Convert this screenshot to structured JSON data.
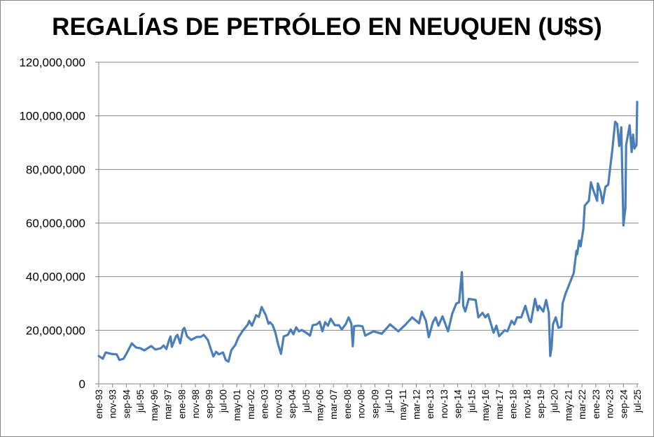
{
  "chart_data": {
    "type": "line",
    "title": "REGALÍAS DE PETRÓLEO EN NEUQUEN (U$S)",
    "xlabel": "",
    "ylabel": "",
    "y_unit_note": "values in millions of US$",
    "ylim": [
      0,
      120000000
    ],
    "yticks": [
      0,
      20000000,
      40000000,
      60000000,
      80000000,
      100000000,
      120000000
    ],
    "ytick_labels": [
      "0",
      "20,000,000",
      "40,000,000",
      "60,000,000",
      "80,000,000",
      "100,000,000",
      "120,000,000"
    ],
    "grid": true,
    "legend": "none",
    "x_start": "ene-93",
    "x_step_months": 10,
    "xtick_labels": [
      "ene-93",
      "nov-93",
      "sep-94",
      "jul-95",
      "may-96",
      "mar-97",
      "ene-98",
      "nov-98",
      "sep-99",
      "jul-00",
      "may-01",
      "mar-02",
      "ene-03",
      "nov-03",
      "sep-04",
      "jul-05",
      "may-06",
      "mar-07",
      "ene-08",
      "nov-08",
      "sep-09",
      "jul-10",
      "may-11",
      "mar-12",
      "ene-13",
      "nov-13",
      "sep-14",
      "jul-15",
      "may-16",
      "mar-17",
      "ene-18",
      "nov-18",
      "sep-19",
      "jul-20",
      "may-21",
      "mar-22",
      "ene-23",
      "nov-23",
      "sep-24",
      "jul-25"
    ],
    "series": [
      {
        "name": "Regalías",
        "color": "#4a7ebb",
        "points_month_index_and_millions": [
          [
            0,
            10.4
          ],
          [
            3,
            9.4
          ],
          [
            5,
            11.7
          ],
          [
            9,
            11.2
          ],
          [
            13,
            11
          ],
          [
            15,
            8.9
          ],
          [
            18,
            9.4
          ],
          [
            20,
            11.2
          ],
          [
            24,
            15.1
          ],
          [
            27,
            13.6
          ],
          [
            30,
            13.3
          ],
          [
            33,
            12.5
          ],
          [
            38,
            14.1
          ],
          [
            41,
            12.8
          ],
          [
            45,
            13.3
          ],
          [
            47,
            14.3
          ],
          [
            49,
            13
          ],
          [
            51,
            16.4
          ],
          [
            52,
            17.7
          ],
          [
            53,
            13.8
          ],
          [
            56,
            17.7
          ],
          [
            57,
            18.3
          ],
          [
            59,
            15.1
          ],
          [
            61,
            20.3
          ],
          [
            62,
            20.9
          ],
          [
            64,
            17.7
          ],
          [
            67,
            16.4
          ],
          [
            71,
            17.5
          ],
          [
            74,
            17.5
          ],
          [
            76,
            18.3
          ],
          [
            79,
            16.4
          ],
          [
            81,
            13.3
          ],
          [
            83,
            10.2
          ],
          [
            85,
            12
          ],
          [
            87,
            11
          ],
          [
            90,
            11.7
          ],
          [
            92,
            8.9
          ],
          [
            94,
            8.3
          ],
          [
            96,
            12.5
          ],
          [
            99,
            14.6
          ],
          [
            101,
            17.2
          ],
          [
            104,
            19.6
          ],
          [
            108,
            22.2
          ],
          [
            109,
            23.5
          ],
          [
            111,
            21.7
          ],
          [
            114,
            25.6
          ],
          [
            116,
            25
          ],
          [
            118,
            28.7
          ],
          [
            121,
            25.6
          ],
          [
            123,
            22.4
          ],
          [
            124,
            23
          ],
          [
            126,
            21.9
          ],
          [
            128,
            19
          ],
          [
            130,
            14.6
          ],
          [
            132,
            11.2
          ],
          [
            134,
            17.7
          ],
          [
            137,
            18.3
          ],
          [
            139,
            20.3
          ],
          [
            141,
            18.5
          ],
          [
            143,
            21.1
          ],
          [
            145,
            19.6
          ],
          [
            147,
            20.1
          ],
          [
            151,
            18.8
          ],
          [
            153,
            18
          ],
          [
            155,
            21.9
          ],
          [
            158,
            22.2
          ],
          [
            160,
            23.2
          ],
          [
            162,
            19.6
          ],
          [
            164,
            23
          ],
          [
            166,
            21.7
          ],
          [
            168,
            24.3
          ],
          [
            171,
            21.9
          ],
          [
            174,
            21.9
          ],
          [
            176,
            20.3
          ],
          [
            179,
            22.4
          ],
          [
            181,
            24.8
          ],
          [
            183,
            22.4
          ],
          [
            184,
            14
          ],
          [
            185,
            21.5
          ],
          [
            188,
            21.7
          ],
          [
            191,
            21.5
          ],
          [
            193,
            18
          ],
          [
            199,
            19.6
          ],
          [
            205,
            18.7
          ],
          [
            211,
            22.2
          ],
          [
            217,
            19.6
          ],
          [
            222,
            22
          ],
          [
            227,
            24.8
          ],
          [
            232,
            22.6
          ],
          [
            234,
            27
          ],
          [
            237,
            23.5
          ],
          [
            239,
            17.4
          ],
          [
            242,
            23
          ],
          [
            244,
            24.8
          ],
          [
            246,
            21.7
          ],
          [
            249,
            25.2
          ],
          [
            253,
            19.6
          ],
          [
            256,
            26.1
          ],
          [
            259,
            30
          ],
          [
            261,
            30.4
          ],
          [
            263,
            41.7
          ],
          [
            264,
            29.1
          ],
          [
            265.5,
            27
          ],
          [
            268,
            31.7
          ],
          [
            273,
            31.3
          ],
          [
            275,
            24.8
          ],
          [
            278,
            26.5
          ],
          [
            280,
            24.8
          ],
          [
            282,
            26
          ],
          [
            286,
            19.1
          ],
          [
            288,
            21.7
          ],
          [
            290,
            17.8
          ],
          [
            294,
            20
          ],
          [
            296,
            19.6
          ],
          [
            299,
            23.5
          ],
          [
            301,
            22.2
          ],
          [
            303,
            24.8
          ],
          [
            306,
            24.8
          ],
          [
            309,
            29.1
          ],
          [
            312,
            23.5
          ],
          [
            313,
            23
          ],
          [
            316,
            31.7
          ],
          [
            318,
            27.4
          ],
          [
            319,
            29.1
          ],
          [
            322,
            27
          ],
          [
            324,
            31.3
          ],
          [
            326,
            26.5
          ],
          [
            327,
            10.4
          ],
          [
            328,
            13.5
          ],
          [
            329,
            22.2
          ],
          [
            331,
            24.8
          ],
          [
            333,
            20.9
          ],
          [
            335,
            21.3
          ],
          [
            336,
            30
          ],
          [
            338,
            33.5
          ],
          [
            341,
            37.4
          ],
          [
            344,
            41.3
          ],
          [
            346,
            49.6
          ],
          [
            346.5,
            48.3
          ],
          [
            348,
            53.5
          ],
          [
            349,
            51.3
          ],
          [
            351,
            57.8
          ],
          [
            352,
            66.5
          ],
          [
            355,
            68.3
          ],
          [
            356.5,
            75.2
          ],
          [
            358,
            72.6
          ],
          [
            361,
            68.3
          ],
          [
            361.5,
            74.8
          ],
          [
            363.5,
            71.7
          ],
          [
            365,
            67.4
          ],
          [
            367,
            73.5
          ],
          [
            369,
            74.3
          ],
          [
            372,
            87.4
          ],
          [
            374,
            97.8
          ],
          [
            375.5,
            97
          ],
          [
            377,
            88.7
          ],
          [
            378.5,
            95.7
          ],
          [
            380,
            59.1
          ],
          [
            381.5,
            65.7
          ],
          [
            382,
            89.1
          ],
          [
            384.5,
            96.5
          ],
          [
            386,
            86.5
          ],
          [
            387,
            93
          ],
          [
            388,
            87.8
          ],
          [
            389.5,
            89.1
          ],
          [
            390,
            105.2
          ]
        ]
      }
    ]
  }
}
